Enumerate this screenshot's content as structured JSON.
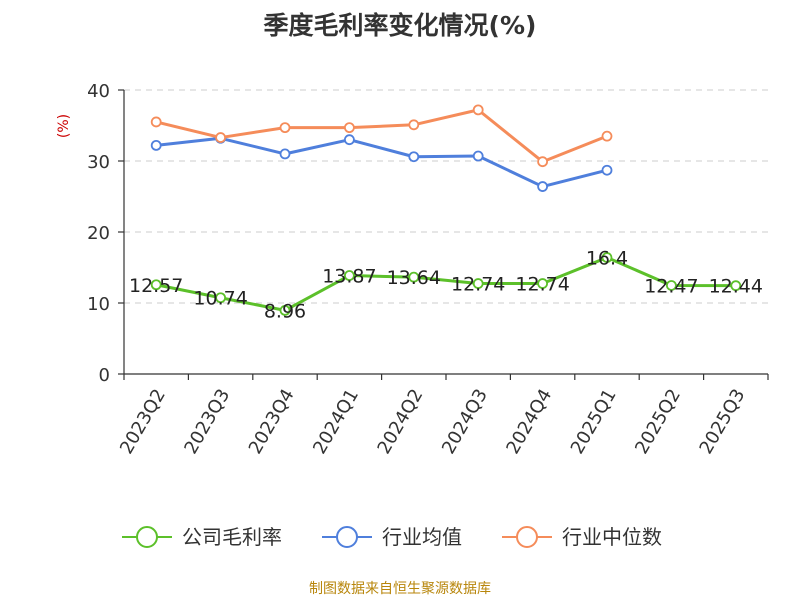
{
  "chart_data": {
    "type": "line",
    "title": "季度毛利率变化情况(%)",
    "ylabel": "(%)",
    "xlabel": "",
    "categories": [
      "2023Q2",
      "2023Q3",
      "2023Q4",
      "2024Q1",
      "2024Q2",
      "2024Q3",
      "2024Q4",
      "2025Q1",
      "2025Q2",
      "2025Q3"
    ],
    "ylim": [
      0,
      40
    ],
    "yticks": [
      0,
      10,
      20,
      30,
      40
    ],
    "grid": true,
    "legend_position": "bottom",
    "series": [
      {
        "name": "公司毛利率",
        "color": "#5cc02a",
        "show_labels": true,
        "values": [
          12.57,
          10.74,
          8.96,
          13.87,
          13.64,
          12.74,
          12.74,
          16.4,
          12.47,
          12.44
        ]
      },
      {
        "name": "行业均值",
        "color": "#4f7fdc",
        "show_labels": false,
        "values": [
          32.2,
          33.2,
          31.0,
          33.0,
          30.6,
          30.7,
          26.4,
          28.7,
          null,
          null
        ]
      },
      {
        "name": "行业中位数",
        "color": "#f58c5a",
        "show_labels": false,
        "values": [
          35.5,
          33.3,
          34.7,
          34.7,
          35.1,
          37.2,
          29.9,
          33.5,
          null,
          null
        ]
      }
    ]
  },
  "source": "制图数据来自恒生聚源数据库",
  "colors": {
    "ylabel": "#cc0000",
    "source": "#b8860b",
    "grid": "#cccccc",
    "axis": "#333333"
  }
}
